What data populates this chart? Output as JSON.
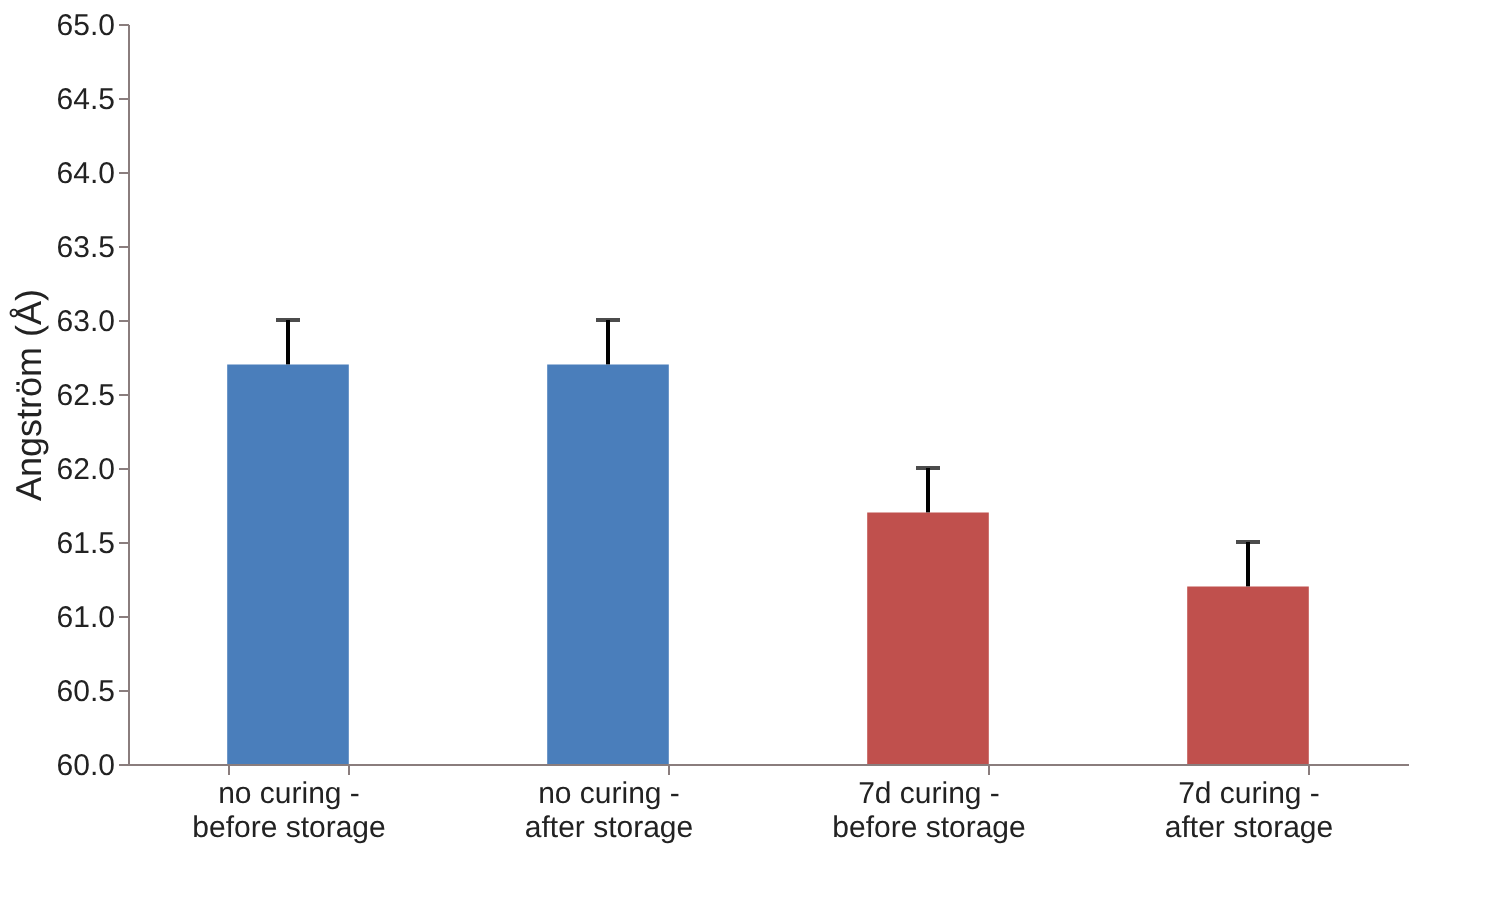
{
  "chart_data": {
    "type": "bar",
    "ylabel": "Angström (Å)",
    "categories": [
      "no curing -\nbefore storage",
      "no curing -\nafter storage",
      "7d curing -\nbefore storage",
      "7d curing -\nafter storage"
    ],
    "values": [
      62.7,
      62.7,
      61.7,
      61.2
    ],
    "colors": [
      "#4a7ebb",
      "#4a7ebb",
      "#c0504d",
      "#c0504d"
    ],
    "errors": [
      [
        62.7,
        63.0
      ],
      [
        62.7,
        63.0
      ],
      [
        61.7,
        62.0
      ],
      [
        61.2,
        61.5
      ]
    ],
    "ylim": [
      60.0,
      65.0
    ],
    "yticks": [
      {
        "value": 60.0,
        "label": "60.0"
      },
      {
        "value": 60.5,
        "label": "60.5"
      },
      {
        "value": 61.0,
        "label": "61.0"
      },
      {
        "value": 61.5,
        "label": "61.5"
      },
      {
        "value": 62.0,
        "label": "62.0"
      },
      {
        "value": 62.5,
        "label": "62.5"
      },
      {
        "value": 63.0,
        "label": "63.0"
      },
      {
        "value": 63.5,
        "label": "63.5"
      },
      {
        "value": 64.0,
        "label": "64.0"
      },
      {
        "value": 64.5,
        "label": "64.5"
      },
      {
        "value": 65.0,
        "label": "65.0"
      }
    ],
    "grid": false
  }
}
